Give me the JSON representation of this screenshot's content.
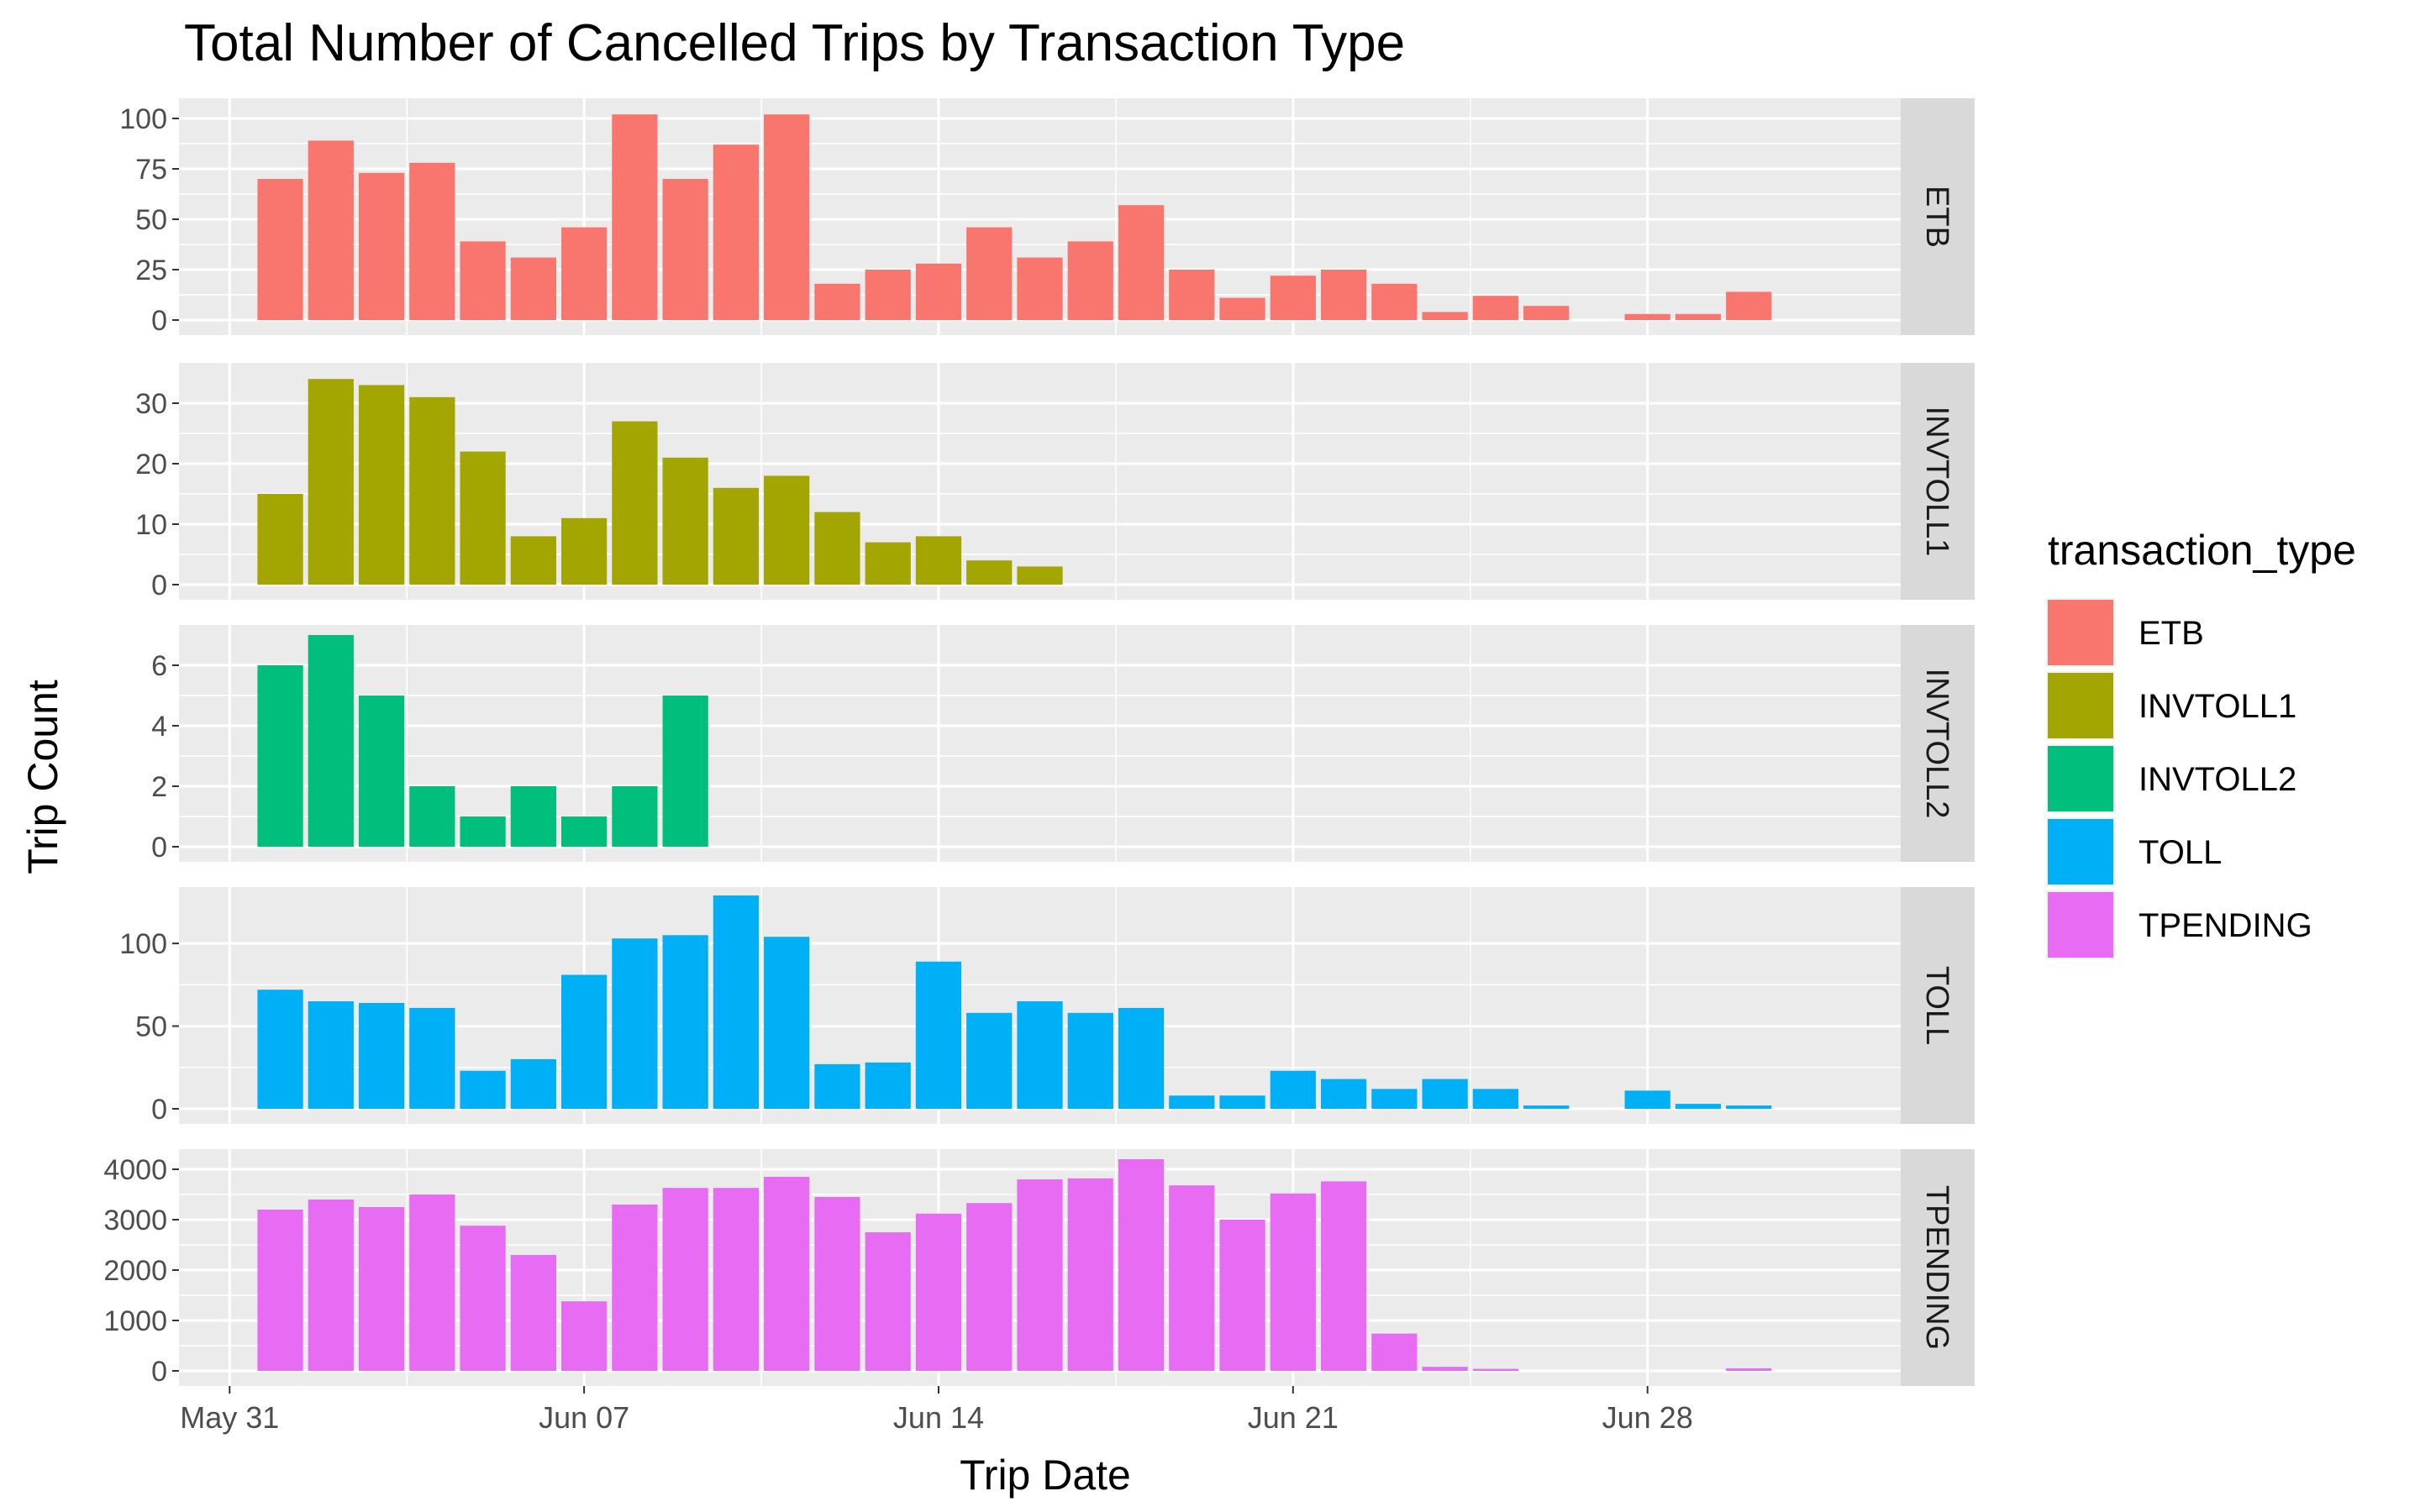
{
  "chart_data": {
    "type": "bar",
    "title": "Total Number of Cancelled Trips by Transaction Type",
    "xlabel": "Trip Date",
    "ylabel": "Trip Count",
    "x_ticks": [
      "May 31",
      "Jun 07",
      "Jun 14",
      "Jun 21",
      "Jun 28"
    ],
    "x_tick_dates": [
      "2020-05-31",
      "2020-06-07",
      "2020-06-14",
      "2020-06-21",
      "2020-06-28"
    ],
    "xlim": [
      "2020-05-30",
      "2020-07-03"
    ],
    "grid": true,
    "facet_layout": "rows",
    "legend_position": "right",
    "legend_title": "transaction_type",
    "panels": [
      {
        "label": "ETB",
        "color": "#F8766D",
        "ylim": [
          0,
          105
        ],
        "y_ticks": [
          0,
          25,
          50,
          75,
          100
        ],
        "dates": [
          "2020-06-01",
          "2020-06-02",
          "2020-06-03",
          "2020-06-04",
          "2020-06-05",
          "2020-06-06",
          "2020-06-07",
          "2020-06-08",
          "2020-06-09",
          "2020-06-10",
          "2020-06-11",
          "2020-06-12",
          "2020-06-13",
          "2020-06-14",
          "2020-06-15",
          "2020-06-16",
          "2020-06-17",
          "2020-06-18",
          "2020-06-19",
          "2020-06-20",
          "2020-06-21",
          "2020-06-22",
          "2020-06-23",
          "2020-06-24",
          "2020-06-25",
          "2020-06-26",
          "2020-06-27",
          "2020-06-28",
          "2020-06-29",
          "2020-06-30"
        ],
        "values": [
          70,
          89,
          73,
          78,
          39,
          31,
          46,
          102,
          70,
          87,
          102,
          18,
          25,
          28,
          46,
          31,
          39,
          57,
          25,
          11,
          22,
          25,
          18,
          4,
          12,
          7,
          0,
          3,
          3,
          14
        ]
      },
      {
        "label": "INVTOLL1",
        "color": "#A3A500",
        "ylim": [
          0,
          35
        ],
        "y_ticks": [
          0,
          10,
          20,
          30
        ],
        "dates": [
          "2020-06-01",
          "2020-06-02",
          "2020-06-03",
          "2020-06-04",
          "2020-06-05",
          "2020-06-06",
          "2020-06-07",
          "2020-06-08",
          "2020-06-09",
          "2020-06-10",
          "2020-06-11",
          "2020-06-12",
          "2020-06-13",
          "2020-06-14",
          "2020-06-15",
          "2020-06-16"
        ],
        "values": [
          15,
          34,
          33,
          31,
          22,
          8,
          11,
          27,
          21,
          16,
          18,
          12,
          7,
          8,
          4,
          3
        ]
      },
      {
        "label": "INVTOLL2",
        "color": "#00BF7D",
        "ylim": [
          0,
          7
        ],
        "y_ticks": [
          0,
          2,
          4,
          6
        ],
        "dates": [
          "2020-06-01",
          "2020-06-02",
          "2020-06-03",
          "2020-06-04",
          "2020-06-05",
          "2020-06-06",
          "2020-06-07",
          "2020-06-08",
          "2020-06-09"
        ],
        "values": [
          6,
          7,
          5,
          2,
          1,
          2,
          1,
          2,
          5
        ]
      },
      {
        "label": "TOLL",
        "color": "#00B0F6",
        "ylim": [
          0,
          128
        ],
        "y_ticks": [
          0,
          50,
          100
        ],
        "dates": [
          "2020-06-01",
          "2020-06-02",
          "2020-06-03",
          "2020-06-04",
          "2020-06-05",
          "2020-06-06",
          "2020-06-07",
          "2020-06-08",
          "2020-06-09",
          "2020-06-10",
          "2020-06-11",
          "2020-06-12",
          "2020-06-13",
          "2020-06-14",
          "2020-06-15",
          "2020-06-16",
          "2020-06-17",
          "2020-06-18",
          "2020-06-19",
          "2020-06-20",
          "2020-06-21",
          "2020-06-22",
          "2020-06-23",
          "2020-06-24",
          "2020-06-25",
          "2020-06-26",
          "2020-06-27",
          "2020-06-28",
          "2020-06-29",
          "2020-06-30"
        ],
        "values": [
          72,
          65,
          64,
          61,
          23,
          30,
          81,
          103,
          105,
          129,
          104,
          27,
          28,
          89,
          58,
          65,
          58,
          61,
          8,
          8,
          23,
          18,
          12,
          18,
          12,
          2,
          0,
          11,
          3,
          2
        ]
      },
      {
        "label": "TPENDING",
        "color": "#E76BF3",
        "ylim": [
          0,
          4200
        ],
        "y_ticks": [
          0,
          1000,
          2000,
          3000,
          4000
        ],
        "dates": [
          "2020-06-01",
          "2020-06-02",
          "2020-06-03",
          "2020-06-04",
          "2020-06-05",
          "2020-06-06",
          "2020-06-07",
          "2020-06-08",
          "2020-06-09",
          "2020-06-10",
          "2020-06-11",
          "2020-06-12",
          "2020-06-13",
          "2020-06-14",
          "2020-06-15",
          "2020-06-16",
          "2020-06-17",
          "2020-06-18",
          "2020-06-19",
          "2020-06-20",
          "2020-06-21",
          "2020-06-22",
          "2020-06-23",
          "2020-06-24",
          "2020-06-25",
          "2020-06-26",
          "2020-06-27",
          "2020-06-28",
          "2020-06-29",
          "2020-06-30"
        ],
        "values": [
          3200,
          3400,
          3250,
          3500,
          2880,
          2300,
          1380,
          3300,
          3630,
          3630,
          3850,
          3450,
          2750,
          3120,
          3330,
          3800,
          3820,
          4200,
          3680,
          3000,
          3520,
          3760,
          740,
          80,
          40,
          0,
          0,
          0,
          0,
          50
        ]
      }
    ]
  }
}
